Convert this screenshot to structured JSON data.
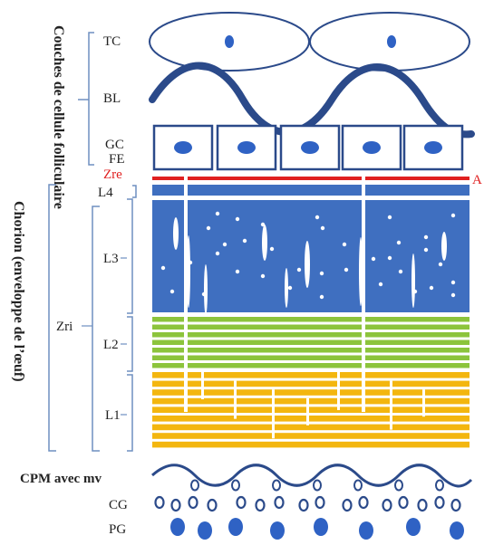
{
  "labels": {
    "couches": "Couches de cellule folliculaire",
    "chorion": "Chorion (enveloppe de l’œuf)",
    "tc": "TC",
    "bl": "BL",
    "gc": "GC",
    "fe": "FE",
    "zre": "Zre",
    "a": "A",
    "l4": "L4",
    "l3": "L3",
    "zri": "Zri",
    "l2": "L2",
    "l1": "L1",
    "cpm": "CPM avec mv",
    "cg": "CG",
    "pg": "PG"
  },
  "colors": {
    "outline": "#2b4a8a",
    "l3_l4": "#3f6fc0",
    "l2": "#8cc43c",
    "l1": "#f3b60f",
    "zre": "#e02020",
    "nucleus": "#2f62c4",
    "brackets": "#6f8fc0"
  },
  "icons": {
    "tc": "ellipse-cell-icon",
    "gc": "square-cell-with-nucleus-icon",
    "cg": "ring-granule-icon",
    "pg": "filled-granule-icon"
  }
}
